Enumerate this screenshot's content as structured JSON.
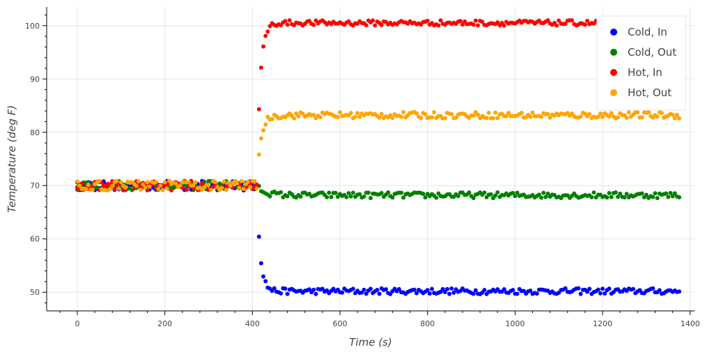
{
  "chart_data": {
    "type": "scatter",
    "xlabel": "Time (s)",
    "ylabel": "Temperature (deg F)",
    "xlim": [
      -70,
      1410
    ],
    "ylim": [
      46.5,
      103.5
    ],
    "x_ticks": [
      0,
      200,
      400,
      600,
      800,
      1000,
      1200,
      1400
    ],
    "y_ticks": [
      50,
      60,
      70,
      80,
      90,
      100
    ],
    "grid": true,
    "legend_position": "top-right",
    "series": [
      {
        "name": "Cold, In",
        "color": "#0000ff",
        "start": 70,
        "end": 50.2,
        "tau": 8,
        "noise": 0.55,
        "x": [
          0,
          5,
          10,
          15,
          20,
          25,
          30,
          35,
          40,
          45,
          50,
          55,
          60,
          65,
          70,
          75,
          80,
          85,
          90,
          95,
          100,
          105,
          110,
          115,
          120,
          125,
          130,
          135,
          140,
          145,
          150,
          155,
          160,
          165,
          170,
          175,
          180,
          185,
          190,
          195,
          200,
          205,
          210,
          215,
          220,
          225,
          230,
          235,
          240,
          245,
          250,
          255,
          260,
          265,
          270,
          275,
          280,
          285,
          290,
          295,
          300,
          305,
          310,
          315,
          320,
          325,
          330,
          335,
          340,
          345,
          350,
          355,
          360,
          365,
          370,
          375,
          380,
          385,
          390,
          395,
          400,
          405,
          410,
          415,
          420,
          425,
          430,
          435,
          440,
          445,
          450,
          455,
          460,
          465,
          470,
          475,
          480,
          485,
          490,
          495,
          500,
          505,
          510,
          515,
          520,
          525,
          530,
          535,
          540,
          545,
          550,
          555,
          560,
          565,
          570,
          575,
          580,
          585,
          590,
          595,
          600,
          605,
          610,
          615,
          620,
          625,
          630,
          635,
          640,
          645,
          650,
          655,
          660,
          665,
          670,
          675,
          680,
          685,
          690,
          695,
          700,
          705,
          710,
          715,
          720,
          725,
          730,
          735,
          740,
          745,
          750,
          755,
          760,
          765,
          770,
          775,
          780,
          785,
          790,
          795,
          800,
          805,
          810,
          815,
          820,
          825,
          830,
          835,
          840,
          845,
          850,
          855,
          860,
          865,
          870,
          875,
          880,
          885,
          890,
          895,
          900,
          905,
          910,
          915,
          920,
          925,
          930,
          935,
          940,
          945,
          950,
          955,
          960,
          965,
          970,
          975,
          980,
          985,
          990,
          995,
          1000,
          1005,
          1010,
          1015,
          1020,
          1025,
          1030,
          1035,
          1040,
          1045,
          1050,
          1055,
          1060,
          1065,
          1070,
          1075,
          1080,
          1085,
          1090,
          1095,
          1100,
          1105,
          1110,
          1115,
          1120,
          1125,
          1130,
          1135,
          1140,
          1145,
          1150,
          1155,
          1160,
          1165,
          1170,
          1175,
          1180,
          1185,
          1190,
          1195,
          1200,
          1205,
          1210,
          1215,
          1220,
          1225,
          1230,
          1235,
          1240,
          1245,
          1250,
          1255,
          1260,
          1265,
          1270,
          1275,
          1280,
          1285,
          1290,
          1295,
          1300,
          1305,
          1310,
          1315,
          1320,
          1325,
          1330,
          1335,
          1340,
          1345,
          1350,
          1355,
          1360,
          1365,
          1370,
          1375
        ]
      },
      {
        "name": "Cold, Out",
        "color": "#008000",
        "start": 70,
        "end": 68.2,
        "tau": 18,
        "noise": 0.55,
        "x": [
          0,
          5,
          10,
          15,
          20,
          25,
          30,
          35,
          40,
          45,
          50,
          55,
          60,
          65,
          70,
          75,
          80,
          85,
          90,
          95,
          100,
          105,
          110,
          115,
          120,
          125,
          130,
          135,
          140,
          145,
          150,
          155,
          160,
          165,
          170,
          175,
          180,
          185,
          190,
          195,
          200,
          205,
          210,
          215,
          220,
          225,
          230,
          235,
          240,
          245,
          250,
          255,
          260,
          265,
          270,
          275,
          280,
          285,
          290,
          295,
          300,
          305,
          310,
          315,
          320,
          325,
          330,
          335,
          340,
          345,
          350,
          355,
          360,
          365,
          370,
          375,
          380,
          385,
          390,
          395,
          400,
          405,
          410,
          415,
          420,
          425,
          430,
          435,
          440,
          445,
          450,
          455,
          460,
          465,
          470,
          475,
          480,
          485,
          490,
          495,
          500,
          505,
          510,
          515,
          520,
          525,
          530,
          535,
          540,
          545,
          550,
          555,
          560,
          565,
          570,
          575,
          580,
          585,
          590,
          595,
          600,
          605,
          610,
          615,
          620,
          625,
          630,
          635,
          640,
          645,
          650,
          655,
          660,
          665,
          670,
          675,
          680,
          685,
          690,
          695,
          700,
          705,
          710,
          715,
          720,
          725,
          730,
          735,
          740,
          745,
          750,
          755,
          760,
          765,
          770,
          775,
          780,
          785,
          790,
          795,
          800,
          805,
          810,
          815,
          820,
          825,
          830,
          835,
          840,
          845,
          850,
          855,
          860,
          865,
          870,
          875,
          880,
          885,
          890,
          895,
          900,
          905,
          910,
          915,
          920,
          925,
          930,
          935,
          940,
          945,
          950,
          955,
          960,
          965,
          970,
          975,
          980,
          985,
          990,
          995,
          1000,
          1005,
          1010,
          1015,
          1020,
          1025,
          1030,
          1035,
          1040,
          1045,
          1050,
          1055,
          1060,
          1065,
          1070,
          1075,
          1080,
          1085,
          1090,
          1095,
          1100,
          1105,
          1110,
          1115,
          1120,
          1125,
          1130,
          1135,
          1140,
          1145,
          1150,
          1155,
          1160,
          1165,
          1170,
          1175,
          1180,
          1185,
          1190,
          1195,
          1200,
          1205,
          1210,
          1215,
          1220,
          1225,
          1230,
          1235,
          1240,
          1245,
          1250,
          1255,
          1260,
          1265,
          1270,
          1275,
          1280,
          1285,
          1290,
          1295,
          1300,
          1305,
          1310,
          1315,
          1320,
          1325,
          1330,
          1335,
          1340,
          1345,
          1350,
          1355,
          1360,
          1365,
          1370,
          1375
        ]
      },
      {
        "name": "Hot, In",
        "color": "#ff0000",
        "start": 70,
        "end": 100.5,
        "tau": 8,
        "noise": 0.5,
        "x": [
          0,
          5,
          10,
          15,
          20,
          25,
          30,
          35,
          40,
          45,
          50,
          55,
          60,
          65,
          70,
          75,
          80,
          85,
          90,
          95,
          100,
          105,
          110,
          115,
          120,
          125,
          130,
          135,
          140,
          145,
          150,
          155,
          160,
          165,
          170,
          175,
          180,
          185,
          190,
          195,
          200,
          205,
          210,
          215,
          220,
          225,
          230,
          235,
          240,
          245,
          250,
          255,
          260,
          265,
          270,
          275,
          280,
          285,
          290,
          295,
          300,
          305,
          310,
          315,
          320,
          325,
          330,
          335,
          340,
          345,
          350,
          355,
          360,
          365,
          370,
          375,
          380,
          385,
          390,
          395,
          400,
          405,
          410,
          415,
          420,
          425,
          430,
          435,
          440,
          445,
          450,
          455,
          460,
          465,
          470,
          475,
          480,
          485,
          490,
          495,
          500,
          505,
          510,
          515,
          520,
          525,
          530,
          535,
          540,
          545,
          550,
          555,
          560,
          565,
          570,
          575,
          580,
          585,
          590,
          595,
          600,
          605,
          610,
          615,
          620,
          625,
          630,
          635,
          640,
          645,
          650,
          655,
          660,
          665,
          670,
          675,
          680,
          685,
          690,
          695,
          700,
          705,
          710,
          715,
          720,
          725,
          730,
          735,
          740,
          745,
          750,
          755,
          760,
          765,
          770,
          775,
          780,
          785,
          790,
          795,
          800,
          805,
          810,
          815,
          820,
          825,
          830,
          835,
          840,
          845,
          850,
          855,
          860,
          865,
          870,
          875,
          880,
          885,
          890,
          895,
          900,
          905,
          910,
          915,
          920,
          925,
          930,
          935,
          940,
          945,
          950,
          955,
          960,
          965,
          970,
          975,
          980,
          985,
          990,
          995,
          1000,
          1005,
          1010,
          1015,
          1020,
          1025,
          1030,
          1035,
          1040,
          1045,
          1050,
          1055,
          1060,
          1065,
          1070,
          1075,
          1080,
          1085,
          1090,
          1095,
          1100,
          1105,
          1110,
          1115,
          1120,
          1125,
          1130,
          1135,
          1140,
          1145,
          1150,
          1155,
          1160,
          1165,
          1170,
          1175,
          1180,
          1185,
          1190,
          1195,
          1200,
          1205,
          1210,
          1215,
          1220,
          1225,
          1230,
          1235,
          1240,
          1245,
          1250,
          1255,
          1260,
          1265,
          1270,
          1275,
          1280,
          1285,
          1290,
          1295,
          1300,
          1305,
          1310,
          1315,
          1320,
          1325,
          1330,
          1335,
          1340,
          1345,
          1350,
          1355,
          1360,
          1365,
          1370,
          1375
        ]
      },
      {
        "name": "Hot, Out",
        "color": "#ffa500",
        "start": 70,
        "end": 83.2,
        "tau": 9,
        "noise": 0.6,
        "x": [
          0,
          5,
          10,
          15,
          20,
          25,
          30,
          35,
          40,
          45,
          50,
          55,
          60,
          65,
          70,
          75,
          80,
          85,
          90,
          95,
          100,
          105,
          110,
          115,
          120,
          125,
          130,
          135,
          140,
          145,
          150,
          155,
          160,
          165,
          170,
          175,
          180,
          185,
          190,
          195,
          200,
          205,
          210,
          215,
          220,
          225,
          230,
          235,
          240,
          245,
          250,
          255,
          260,
          265,
          270,
          275,
          280,
          285,
          290,
          295,
          300,
          305,
          310,
          315,
          320,
          325,
          330,
          335,
          340,
          345,
          350,
          355,
          360,
          365,
          370,
          375,
          380,
          385,
          390,
          395,
          400,
          405,
          410,
          415,
          420,
          425,
          430,
          435,
          440,
          445,
          450,
          455,
          460,
          465,
          470,
          475,
          480,
          485,
          490,
          495,
          500,
          505,
          510,
          515,
          520,
          525,
          530,
          535,
          540,
          545,
          550,
          555,
          560,
          565,
          570,
          575,
          580,
          585,
          590,
          595,
          600,
          605,
          610,
          615,
          620,
          625,
          630,
          635,
          640,
          645,
          650,
          655,
          660,
          665,
          670,
          675,
          680,
          685,
          690,
          695,
          700,
          705,
          710,
          715,
          720,
          725,
          730,
          735,
          740,
          745,
          750,
          755,
          760,
          765,
          770,
          775,
          780,
          785,
          790,
          795,
          800,
          805,
          810,
          815,
          820,
          825,
          830,
          835,
          840,
          845,
          850,
          855,
          860,
          865,
          870,
          875,
          880,
          885,
          890,
          895,
          900,
          905,
          910,
          915,
          920,
          925,
          930,
          935,
          940,
          945,
          950,
          955,
          960,
          965,
          970,
          975,
          980,
          985,
          990,
          995,
          1000,
          1005,
          1010,
          1015,
          1020,
          1025,
          1030,
          1035,
          1040,
          1045,
          1050,
          1055,
          1060,
          1065,
          1070,
          1075,
          1080,
          1085,
          1090,
          1095,
          1100,
          1105,
          1110,
          1115,
          1120,
          1125,
          1130,
          1135,
          1140,
          1145,
          1150,
          1155,
          1160,
          1165,
          1170,
          1175,
          1180,
          1185,
          1190,
          1195,
          1200,
          1205,
          1210,
          1215,
          1220,
          1225,
          1230,
          1235,
          1240,
          1245,
          1250,
          1255,
          1260,
          1265,
          1270,
          1275,
          1280,
          1285,
          1290,
          1295,
          1300,
          1305,
          1310,
          1315,
          1320,
          1325,
          1330,
          1335,
          1340,
          1345,
          1350,
          1355,
          1360,
          1365,
          1370,
          1375
        ]
      }
    ],
    "step_time": 410
  }
}
